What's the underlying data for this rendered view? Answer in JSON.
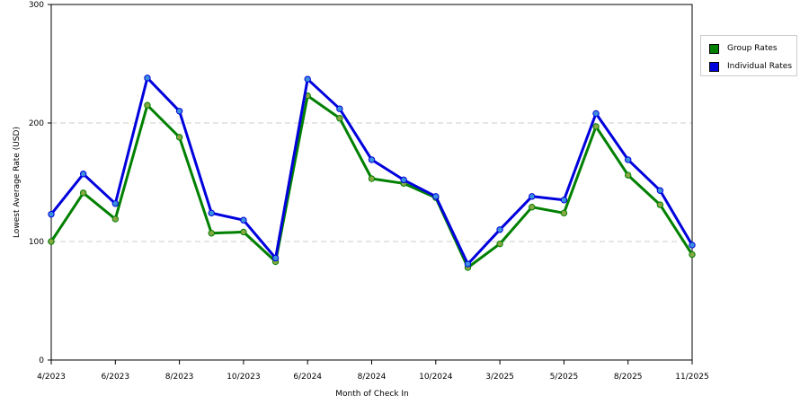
{
  "chart_data": {
    "type": "line",
    "title": "",
    "xlabel": "Month of Check In",
    "ylabel": "Lowest Average Rate (USD)",
    "ylim": [
      0,
      300
    ],
    "yticks": [
      "0",
      "100",
      "200",
      "300"
    ],
    "x_tick_labels": [
      "4/2023",
      "6/2023",
      "8/2023",
      "10/2023",
      "6/2024",
      "8/2024",
      "10/2024",
      "3/2025",
      "5/2025",
      "8/2025",
      "11/2025"
    ],
    "x_tick_positions": [
      0,
      2,
      4,
      6,
      8,
      10,
      12,
      14,
      16,
      18,
      20
    ],
    "point_count": 21,
    "grid": "horizontal dashed",
    "legend_position": "right",
    "series": [
      {
        "name": "Group Rates",
        "color": "#008000",
        "marker_color": "#88a844",
        "values": [
          100,
          141,
          119,
          215,
          188,
          107,
          108,
          83,
          223,
          204,
          153,
          149,
          137,
          78,
          98,
          129,
          124,
          197,
          156,
          131,
          89
        ]
      },
      {
        "name": "Individual Rates",
        "color": "#0000dd",
        "marker_color": "#3a8fde",
        "values": [
          123,
          157,
          132,
          238,
          210,
          124,
          118,
          86,
          237,
          212,
          169,
          152,
          138,
          81,
          110,
          138,
          135,
          208,
          169,
          143,
          97
        ]
      }
    ]
  },
  "legend": {
    "items": [
      {
        "label": "Group Rates",
        "color": "#008000"
      },
      {
        "label": "Individual Rates",
        "color": "#0000dd"
      }
    ]
  }
}
